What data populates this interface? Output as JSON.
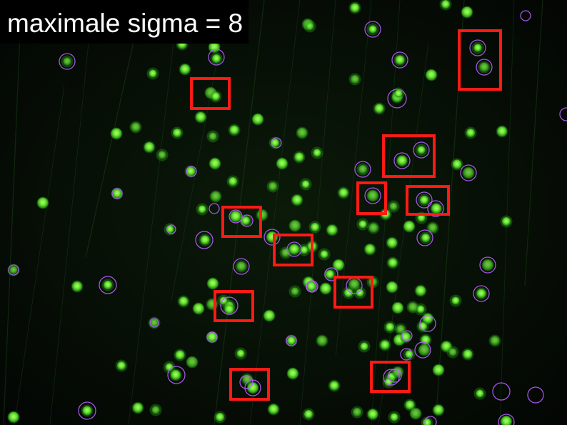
{
  "overlay": {
    "label": "maximale sigma = 8"
  },
  "colors": {
    "background": "#040804",
    "cell_core": "#7dff3a",
    "cell_glow": "#2aa81a",
    "detection_circle": "#b85cff",
    "highlight_box": "#ff1a14",
    "label_text": "#ffffff",
    "label_background": "#000000"
  }
}
